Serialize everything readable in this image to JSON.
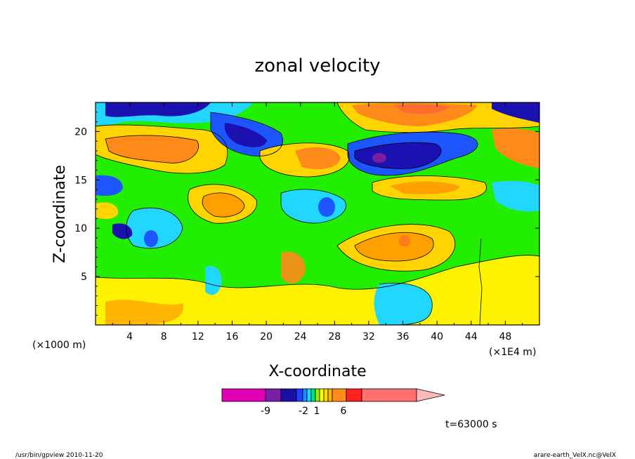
{
  "chart_data": {
    "type": "heatmap",
    "title": "zonal velocity",
    "xlabel": "X-coordinate",
    "ylabel": "Z-coordinate",
    "x_unit_left": "(×1000 m)",
    "x_unit_right": "(×1E4 m)",
    "xlim": [
      0,
      52
    ],
    "ylim": [
      0,
      23
    ],
    "xticks": [
      "4",
      "8",
      "12",
      "16",
      "20",
      "24",
      "28",
      "32",
      "36",
      "40",
      "44",
      "48"
    ],
    "yticks": [
      "5",
      "10",
      "15",
      "20"
    ],
    "colorbar": {
      "levels": [
        "-9",
        "-2",
        "1",
        "6"
      ],
      "colors": [
        "#e100b4",
        "#7a1ea6",
        "#1b0fa6",
        "#1d40ff",
        "#1f8cff",
        "#19d7ff",
        "#00e07f",
        "#9bea00",
        "#ffff00",
        "#ffd800",
        "#ffb300",
        "#ff8a1a",
        "#ff2020",
        "#ff7070",
        "#ffb8b8"
      ]
    },
    "annotation_time": "t=63000 s"
  },
  "footer": {
    "left": "/usr/bin/gpview   2010-11-20",
    "right": "arare-earth_VelX.nc@VelX"
  }
}
